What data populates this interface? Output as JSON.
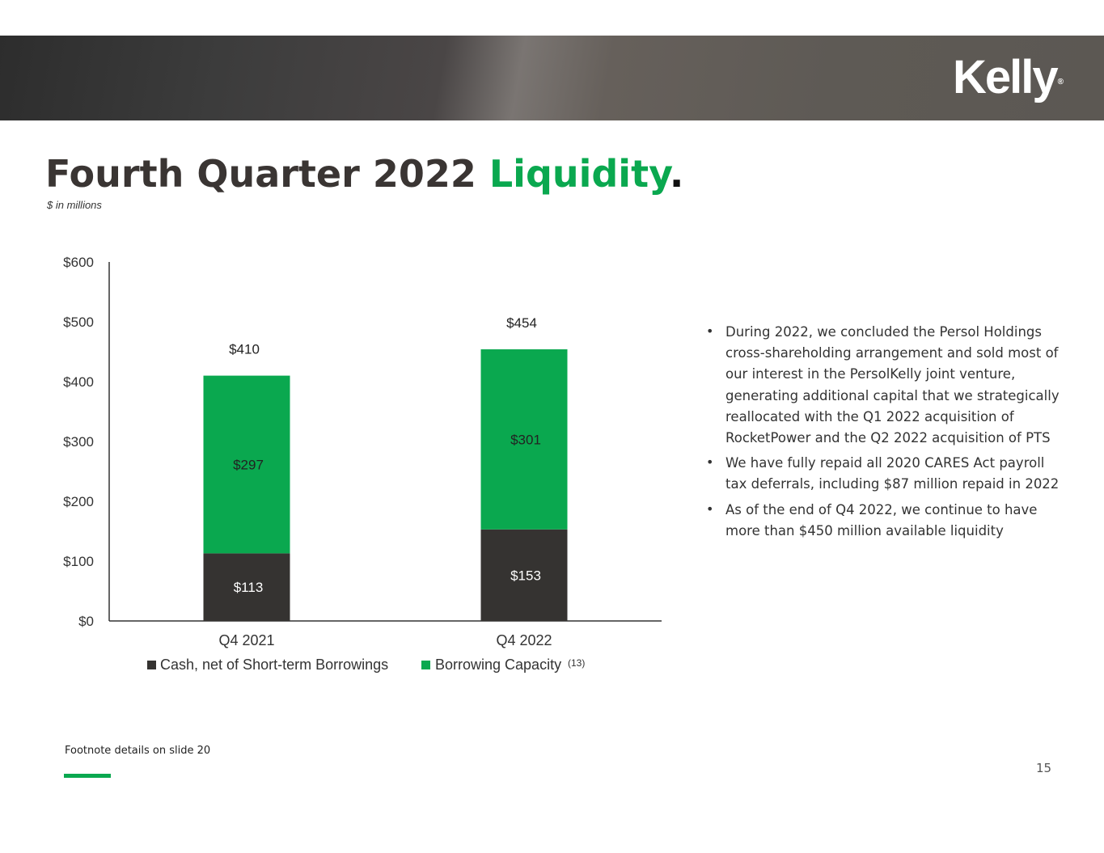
{
  "header": {
    "logo_text": "Kelly",
    "logo_mark": "®"
  },
  "title": {
    "main": "Fourth Quarter 2022",
    "highlight": "Liquidity",
    "dot": ".",
    "subtitle": "$ in millions"
  },
  "colors": {
    "brand_green": "#0aa84f",
    "dark": "#353331"
  },
  "chart_data": {
    "type": "bar",
    "stacked": true,
    "categories": [
      "Q4 2021",
      "Q4 2022"
    ],
    "series": [
      {
        "name": "Cash, net of Short-term Borrowings",
        "values": [
          113,
          153
        ],
        "labels": [
          "$113",
          "$153"
        ],
        "color": "#353331"
      },
      {
        "name": "Borrowing Capacity",
        "values": [
          297,
          301
        ],
        "labels": [
          "$297",
          "$301"
        ],
        "color": "#0aa84f",
        "note": "(13)"
      }
    ],
    "totals": [
      410,
      454
    ],
    "total_labels": [
      "$410",
      "$454"
    ],
    "ylim": [
      0,
      600
    ],
    "yticks": [
      0,
      100,
      200,
      300,
      400,
      500,
      600
    ],
    "ytick_labels": [
      "$0",
      "$100",
      "$200",
      "$300",
      "$400",
      "$500",
      "$600"
    ],
    "legend_position": "bottom",
    "grid": false,
    "title": "",
    "xlabel": "",
    "ylabel": ""
  },
  "bullets": [
    "During 2022, we concluded the Persol Holdings cross-shareholding arrangement and sold most of our interest in the PersolKelly joint venture, generating additional capital that we strategically reallocated with the Q1 2022 acquisition of RocketPower and the Q2 2022 acquisition of PTS",
    "We have fully repaid all 2020 CARES Act payroll tax deferrals, including $87 million repaid in 2022",
    "As of the end of Q4 2022, we continue to have more than $450 million available liquidity"
  ],
  "footer": {
    "footnote": "Footnote details on slide 20",
    "page_number": "15"
  }
}
